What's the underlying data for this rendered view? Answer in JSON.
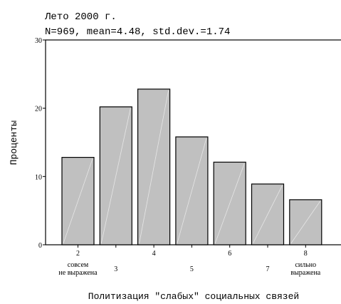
{
  "chart_data": {
    "type": "bar",
    "title": "Лето 2000 г.",
    "subtitle": "N=969, mean=4.48, std.dev.=1.74",
    "xlabel": "Политизация \"слабых\" социальных связей",
    "ylabel": "Проценты",
    "ylim": [
      0,
      30
    ],
    "yticks": [
      0,
      10,
      20,
      30
    ],
    "categories": [
      "2",
      "3",
      "4",
      "5",
      "6",
      "7",
      "8"
    ],
    "values": [
      12.8,
      20.2,
      22.8,
      15.8,
      12.1,
      8.9,
      6.6
    ],
    "category_notes": {
      "2": [
        "совсем",
        "не выражена"
      ],
      "8": [
        "сильно",
        "выражена"
      ]
    },
    "grid": false,
    "legend": "none",
    "bar_color": "#c0c0c0",
    "bar_stroke": "#000000"
  }
}
